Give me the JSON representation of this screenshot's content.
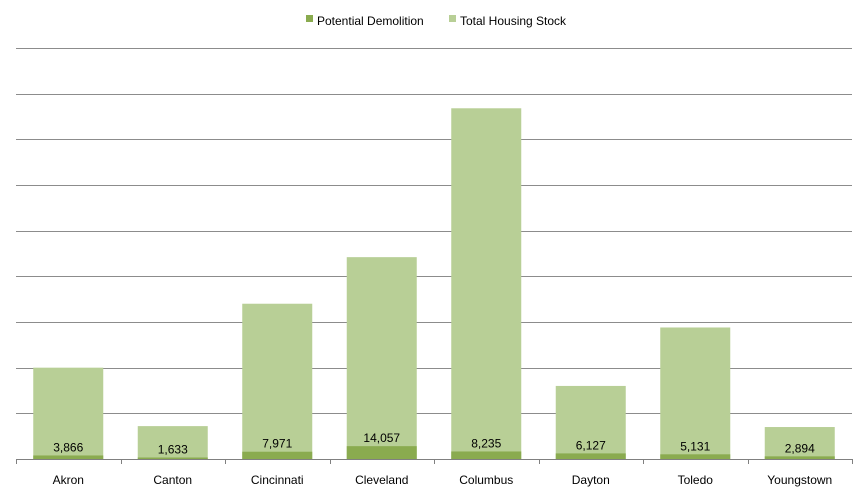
{
  "chart_data": {
    "type": "bar",
    "stacked": false,
    "overlapping": true,
    "categories": [
      "Akron",
      "Canton",
      "Cincinnati",
      "Cleveland",
      "Columbus",
      "Dayton",
      "Toledo",
      "Youngstown"
    ],
    "series": [
      {
        "name": "Potential Demolition",
        "color": "#8aab4f",
        "values": [
          3866,
          1633,
          7971,
          14057,
          8235,
          6127,
          5131,
          2894
        ],
        "data_labels": [
          "3,866",
          "1,633",
          "7,971",
          "14,057",
          "8,235",
          "6,127",
          "5,131",
          "2,894"
        ]
      },
      {
        "name": "Total Housing Stock",
        "color": "#b8cf96",
        "values": [
          100000,
          36000,
          170000,
          221000,
          384000,
          80000,
          144000,
          35000
        ]
      }
    ],
    "ylim": [
      0,
      450000
    ],
    "grid": true,
    "legend_position": "top",
    "title": "",
    "xlabel": "",
    "ylabel": ""
  }
}
